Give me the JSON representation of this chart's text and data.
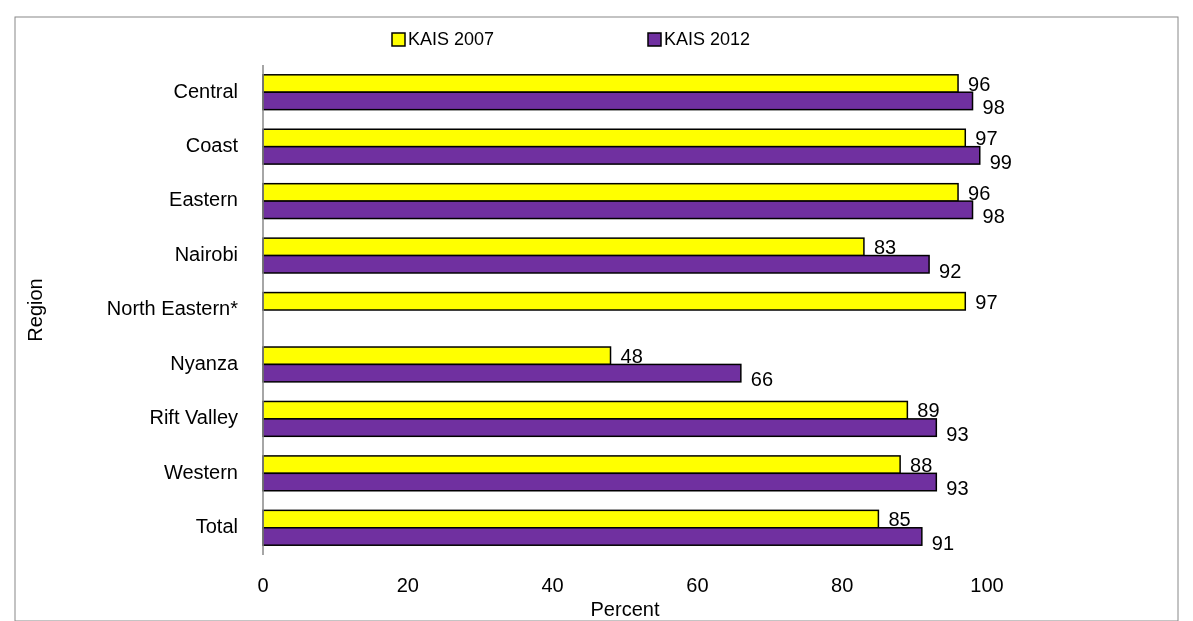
{
  "chart_data": {
    "type": "bar",
    "orientation": "horizontal",
    "xlabel": "Percent",
    "ylabel": "Region",
    "categories": [
      "Central",
      "Coast",
      "Eastern",
      "Nairobi",
      "North Eastern*",
      "Nyanza",
      "Rift Valley",
      "Western",
      "Total"
    ],
    "series": [
      {
        "name": "KAIS 2007",
        "color": "#ffff00",
        "values": [
          96,
          97,
          96,
          83,
          97,
          48,
          89,
          88,
          85
        ]
      },
      {
        "name": "KAIS 2012",
        "color": "#7030a0",
        "values": [
          98,
          99,
          98,
          92,
          null,
          66,
          93,
          93,
          91
        ]
      }
    ],
    "xlim": [
      0,
      100
    ],
    "xticks": [
      0,
      20,
      40,
      60,
      80,
      100
    ],
    "data_labels": true,
    "legend": "top",
    "grid": false
  }
}
